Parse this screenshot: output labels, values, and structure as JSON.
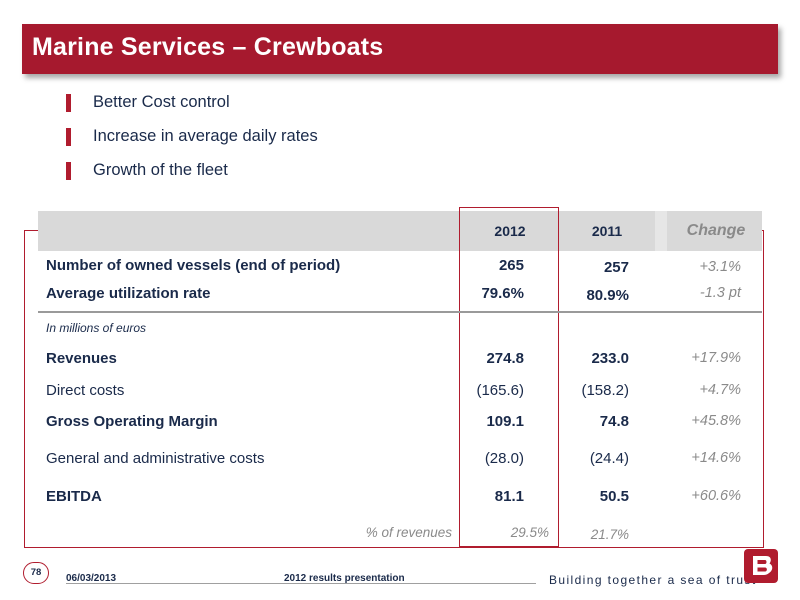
{
  "title": "Marine Services – Crewboats",
  "bullets": [
    "Better Cost control",
    "Increase in average daily rates",
    "Growth of the fleet"
  ],
  "table": {
    "headers": {
      "y2012": "2012",
      "y2011": "2011",
      "change": "Change"
    },
    "unit_note": "In millions of euros",
    "rows": [
      {
        "label": "Number of owned vessels  (end of period)",
        "y2012": "265",
        "y2011": "257",
        "change": "+3.1%"
      },
      {
        "label": "Average utilization rate",
        "y2012": "79.6%",
        "y2011": "80.9%",
        "change": "-1.3 pt"
      },
      {
        "label": "Revenues",
        "y2012": "274.8",
        "y2011": "233.0",
        "change": "+17.9%"
      },
      {
        "label": "Direct costs",
        "y2012": "(165.6)",
        "y2011": "(158.2)",
        "change": "+4.7%"
      },
      {
        "label": "Gross Operating Margin",
        "y2012": "109.1",
        "y2011": "74.8",
        "change": "+45.8%"
      },
      {
        "label": "General and administrative costs",
        "y2012": "(28.0)",
        "y2011": "(24.4)",
        "change": "+14.6%"
      },
      {
        "label": "EBITDA",
        "y2012": "81.1",
        "y2011": "50.5",
        "change": "+60.6%"
      }
    ],
    "pct_row": {
      "label": "% of revenues",
      "y2012": "29.5%",
      "y2011": "21.7%"
    }
  },
  "footer": {
    "page": "78",
    "date": "06/03/2013",
    "presentation": "2012 results presentation",
    "tagline": "Building together a sea of trust"
  },
  "colors": {
    "brand": "#a6192e"
  },
  "icons": {
    "logo": "bourbon-logo-icon"
  }
}
